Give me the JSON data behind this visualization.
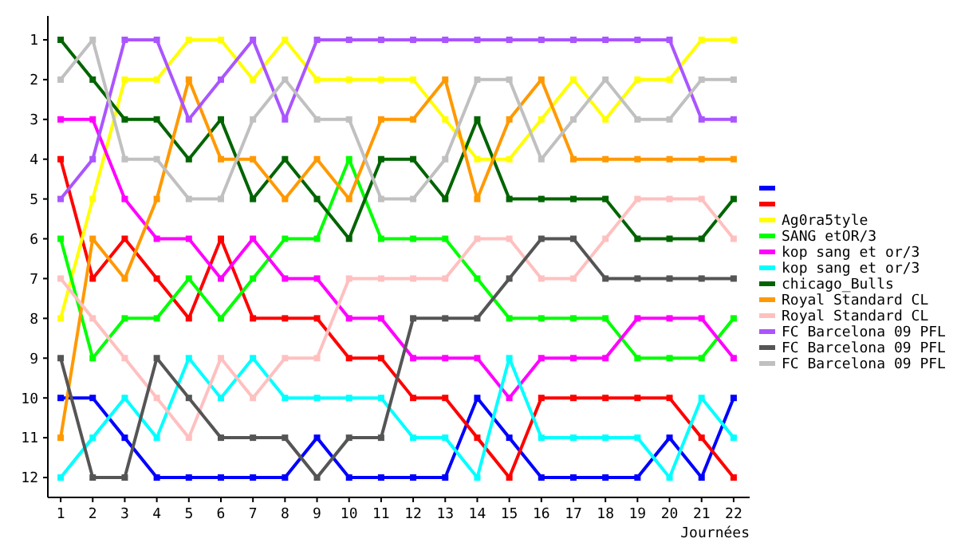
{
  "chart_data": {
    "type": "line",
    "xlabel": "Journées",
    "x": [
      1,
      2,
      3,
      4,
      5,
      6,
      7,
      8,
      9,
      10,
      11,
      12,
      13,
      14,
      15,
      16,
      17,
      18,
      19,
      20,
      21,
      22
    ],
    "xlim": [
      0.6,
      22.5
    ],
    "xticks": [
      1,
      2,
      3,
      4,
      5,
      6,
      7,
      8,
      9,
      10,
      11,
      12,
      13,
      14,
      15,
      16,
      17,
      18,
      19,
      20,
      21,
      22
    ],
    "ylim": [
      12.5,
      0.4
    ],
    "yticks": [
      1,
      2,
      3,
      4,
      5,
      6,
      7,
      8,
      9,
      10,
      11,
      12
    ],
    "grid": false,
    "legend": "right",
    "marker": "square",
    "line_style": "solid",
    "series": [
      {
        "color": "#0000ff",
        "values": [
          10,
          10,
          11,
          12,
          12,
          12,
          12,
          12,
          11,
          12,
          12,
          12,
          12,
          10,
          11,
          12,
          12,
          12,
          12,
          11,
          12,
          10
        ]
      },
      {
        "color": "#ff0000",
        "values": [
          4,
          7,
          6,
          7,
          8,
          6,
          8,
          8,
          8,
          9,
          9,
          10,
          10,
          11,
          12,
          10,
          10,
          10,
          10,
          10,
          11,
          12
        ]
      },
      {
        "name": "Ag0ra5tyle",
        "color": "#ffff00",
        "values": [
          8,
          5,
          2,
          2,
          1,
          1,
          2,
          1,
          2,
          2,
          2,
          2,
          3,
          4,
          4,
          3,
          2,
          3,
          2,
          2,
          1,
          1
        ]
      },
      {
        "name": "SANG etOR/3",
        "color": "#00ff00",
        "values": [
          6,
          9,
          8,
          8,
          7,
          8,
          7,
          6,
          6,
          4,
          6,
          6,
          6,
          7,
          8,
          8,
          8,
          8,
          9,
          9,
          9,
          8
        ]
      },
      {
        "name": "kop sang et or/3",
        "color": "#ff00ff",
        "values": [
          3,
          3,
          5,
          6,
          6,
          7,
          6,
          7,
          7,
          8,
          8,
          9,
          9,
          9,
          10,
          9,
          9,
          9,
          8,
          8,
          8,
          9
        ]
      },
      {
        "name": "kop sang et or/3",
        "color": "#00ffff",
        "values": [
          12,
          11,
          10,
          11,
          9,
          10,
          9,
          10,
          10,
          10,
          10,
          11,
          11,
          12,
          9,
          11,
          11,
          11,
          11,
          12,
          10,
          11
        ]
      },
      {
        "name": "chicago_Bulls",
        "color": "#006400",
        "values": [
          1,
          2,
          3,
          3,
          4,
          3,
          5,
          4,
          5,
          6,
          4,
          4,
          5,
          3,
          5,
          5,
          5,
          5,
          6,
          6,
          6,
          5
        ]
      },
      {
        "name": "Royal Standard CL",
        "color": "#ff9900",
        "values": [
          11,
          6,
          7,
          5,
          2,
          4,
          4,
          5,
          4,
          5,
          3,
          3,
          2,
          5,
          3,
          2,
          4,
          4,
          4,
          4,
          4,
          4
        ]
      },
      {
        "name": "Royal Standard CL",
        "color": "#ffc0c0",
        "values": [
          7,
          8,
          9,
          10,
          11,
          9,
          10,
          9,
          9,
          7,
          7,
          7,
          7,
          6,
          6,
          7,
          7,
          6,
          5,
          5,
          5,
          6
        ]
      },
      {
        "name": "FC Barcelona 09 PFL",
        "color": "#aa55ff",
        "values": [
          5,
          4,
          1,
          1,
          3,
          2,
          1,
          3,
          1,
          1,
          1,
          1,
          1,
          1,
          1,
          1,
          1,
          1,
          1,
          1,
          3,
          3
        ]
      },
      {
        "name": "FC Barcelona 09 PFL",
        "color": "#555555",
        "values": [
          9,
          12,
          12,
          9,
          10,
          11,
          11,
          11,
          12,
          11,
          11,
          8,
          8,
          8,
          7,
          6,
          6,
          7,
          7,
          7,
          7,
          7
        ]
      },
      {
        "name": "FC Barcelona 09 PFL",
        "color": "#c0c0c0",
        "values": [
          2,
          1,
          4,
          4,
          5,
          5,
          3,
          2,
          3,
          3,
          5,
          5,
          4,
          2,
          2,
          4,
          3,
          2,
          3,
          3,
          2,
          2
        ]
      }
    ]
  }
}
